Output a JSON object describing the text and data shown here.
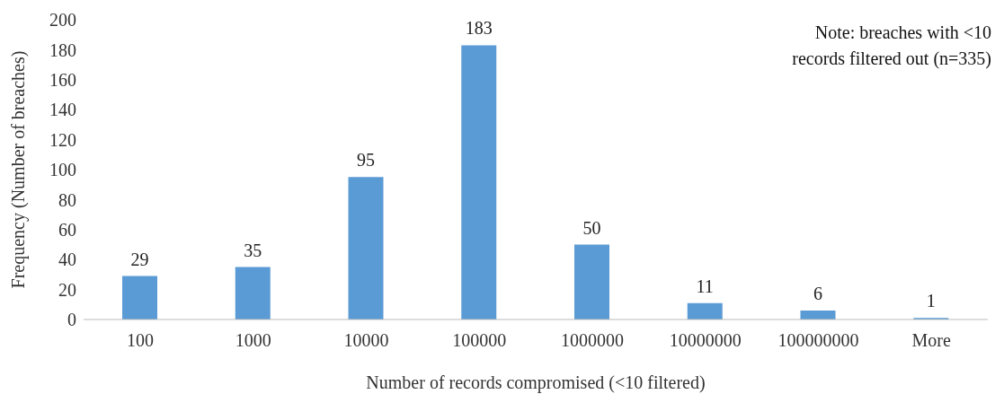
{
  "chart_data": {
    "type": "bar",
    "xlabel": "Number of records compromised (<10 filtered)",
    "ylabel": "Frequency (Number of breaches)",
    "categories": [
      "100",
      "1000",
      "10000",
      "100000",
      "1000000",
      "10000000",
      "100000000",
      "More"
    ],
    "values": [
      29,
      35,
      95,
      183,
      50,
      11,
      6,
      1
    ],
    "color": "#5b9bd5",
    "ylim": [
      0,
      200
    ],
    "yticks": [
      0,
      20,
      40,
      60,
      80,
      100,
      120,
      140,
      160,
      180,
      200
    ],
    "grid": false,
    "legend": false,
    "data_labels": true,
    "annotations": [
      "Note: breaches with <10 records filtered out (n=335)"
    ]
  }
}
